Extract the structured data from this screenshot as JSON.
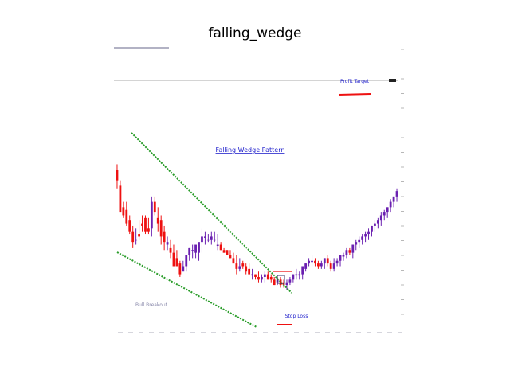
{
  "figure": {
    "title": "falling_wedge"
  },
  "chart_data": {
    "type": "candlestick",
    "title": "falling_wedge",
    "annotation_title": "Falling Wedge Pattern",
    "annotations": [
      "Bull Breakout",
      "Stop Loss",
      "Profit Target"
    ],
    "ylim": [
      0,
      100
    ],
    "grid": false,
    "colors": {
      "bull": "#6a1fb0",
      "bear": "#ee1111",
      "trendline": "#2a9d2a",
      "annotation": "#2222cc",
      "resistance": "#aaaaaa"
    },
    "candles": [
      [
        59,
        61,
        55,
        52
      ],
      [
        53,
        55,
        43,
        43
      ],
      [
        45,
        47,
        42,
        41
      ],
      [
        44,
        47,
        39,
        38
      ],
      [
        40,
        42,
        36,
        35
      ],
      [
        36,
        38,
        32,
        30
      ],
      [
        33,
        37,
        33,
        31
      ],
      [
        35,
        40,
        34,
        33
      ],
      [
        39,
        42,
        38,
        36
      ],
      [
        41,
        42,
        36,
        35
      ],
      [
        37,
        41,
        36,
        35
      ],
      [
        37,
        49,
        47,
        34
      ],
      [
        47,
        49,
        43,
        42
      ],
      [
        41,
        45,
        39,
        36
      ],
      [
        40,
        42,
        34,
        31
      ],
      [
        36,
        38,
        32,
        29
      ],
      [
        31,
        34,
        32,
        29
      ],
      [
        30,
        33,
        28,
        26
      ],
      [
        28,
        31,
        23,
        23
      ],
      [
        26,
        29,
        23,
        23
      ],
      [
        24,
        25,
        20,
        19
      ],
      [
        21,
        25,
        23,
        23
      ],
      [
        23,
        26,
        27,
        21
      ],
      [
        27,
        30,
        30,
        25
      ],
      [
        29,
        31,
        29,
        26
      ],
      [
        28,
        31,
        31,
        26
      ],
      [
        28,
        31,
        32,
        25
      ],
      [
        32,
        37,
        34,
        28
      ],
      [
        34,
        36,
        34,
        31
      ],
      [
        33,
        35,
        33,
        32
      ],
      [
        33,
        36,
        34,
        31
      ],
      [
        33,
        36,
        33,
        32
      ],
      [
        31,
        35,
        31,
        29
      ],
      [
        31,
        32,
        29,
        29
      ],
      [
        29,
        30,
        28,
        28
      ],
      [
        29,
        29,
        27,
        27
      ],
      [
        27,
        29,
        26,
        26
      ],
      [
        26,
        28,
        24,
        24
      ],
      [
        24,
        27,
        22,
        20
      ],
      [
        22,
        26,
        23,
        21
      ],
      [
        24,
        25,
        23,
        22
      ],
      [
        23,
        24,
        21,
        20
      ],
      [
        22,
        24,
        20,
        20
      ],
      [
        20,
        22,
        20,
        18
      ],
      [
        20,
        20,
        19,
        18
      ],
      [
        19,
        21,
        18,
        17
      ],
      [
        18,
        20,
        19,
        17
      ],
      [
        19,
        21,
        20,
        17
      ],
      [
        20,
        21,
        18,
        18
      ],
      [
        19,
        20,
        18,
        17
      ],
      [
        18,
        19,
        16,
        16
      ],
      [
        17,
        19,
        18,
        16
      ],
      [
        18,
        19,
        16,
        15
      ],
      [
        17,
        18,
        16,
        15
      ],
      [
        16,
        18,
        17,
        14
      ],
      [
        17,
        19,
        18,
        16
      ],
      [
        18,
        20,
        20,
        17
      ],
      [
        20,
        22,
        20,
        18
      ],
      [
        20,
        21,
        20,
        18
      ],
      [
        20,
        23,
        23,
        18
      ],
      [
        22,
        24,
        24,
        21
      ],
      [
        24,
        26,
        25,
        23
      ],
      [
        25,
        27,
        25,
        23
      ],
      [
        25,
        26,
        24,
        23
      ],
      [
        24,
        25,
        23,
        22
      ],
      [
        23,
        25,
        24,
        22
      ],
      [
        24,
        26,
        26,
        22
      ],
      [
        26,
        27,
        24,
        23
      ],
      [
        24,
        25,
        22,
        21
      ],
      [
        22,
        26,
        24,
        21
      ],
      [
        24,
        26,
        25,
        23
      ],
      [
        25,
        27,
        27,
        23
      ],
      [
        27,
        28,
        27,
        25
      ],
      [
        27,
        30,
        29,
        26
      ],
      [
        29,
        30,
        28,
        27
      ],
      [
        28,
        31,
        31,
        26
      ],
      [
        31,
        33,
        32,
        29
      ],
      [
        32,
        34,
        33,
        30
      ],
      [
        33,
        35,
        34,
        31
      ],
      [
        34,
        36,
        35,
        32
      ],
      [
        35,
        37,
        36,
        33
      ],
      [
        36,
        38,
        38,
        34
      ],
      [
        38,
        40,
        39,
        36
      ],
      [
        39,
        41,
        40,
        37
      ],
      [
        40,
        43,
        42,
        38
      ],
      [
        42,
        44,
        43,
        40
      ],
      [
        43,
        45,
        45,
        41
      ],
      [
        45,
        48,
        47,
        43
      ],
      [
        47,
        49,
        49,
        45
      ],
      [
        49,
        52,
        51,
        47
      ]
    ]
  }
}
